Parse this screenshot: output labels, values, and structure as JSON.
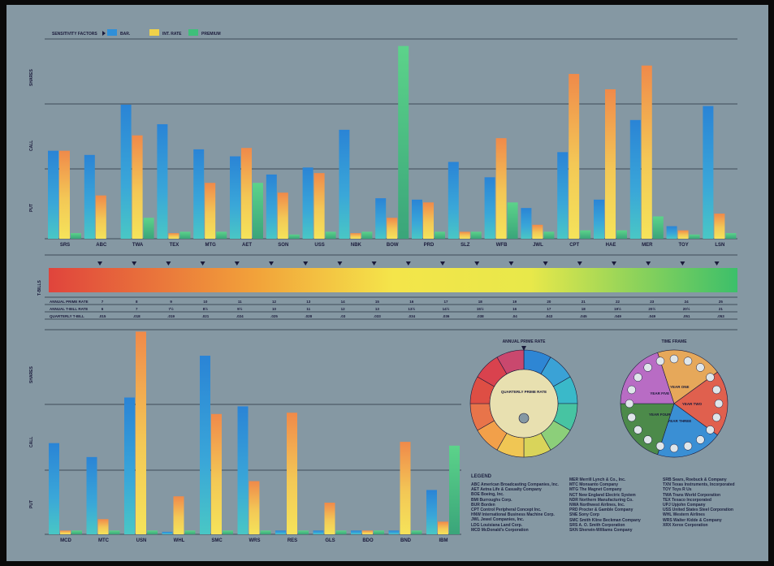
{
  "legend": {
    "title": "SENSITIVITY FACTORS",
    "items": [
      {
        "label": "BAR.",
        "color": "#2f8fd8"
      },
      {
        "label": "INT. RATE",
        "color": "#f0d24a"
      },
      {
        "label": "PREMIUM",
        "color": "#3fbf7a"
      }
    ]
  },
  "colors": {
    "bg": "#8598a3",
    "blue": "#2f8fd8",
    "orange": "#f09a4a",
    "green": "#3fbf7a",
    "text": "#1a1a3a"
  },
  "top_axis_labels": [
    "SHARES",
    "CALL",
    "PUT"
  ],
  "bottom_axis_labels": [
    "SHARES",
    "CALL",
    "PUT"
  ],
  "tbills_label": "T-BILLS",
  "rate_table": {
    "rows": [
      {
        "label": "ANNUAL PRIME RATE",
        "values": [
          "7",
          "8",
          "9",
          "10",
          "11",
          "12",
          "13",
          "14",
          "15",
          "16",
          "17",
          "18",
          "19",
          "20",
          "21",
          "22",
          "23",
          "24",
          "25"
        ]
      },
      {
        "label": "ANNUAL T-BILL RATE",
        "values": [
          "6",
          "7",
          "7½",
          "8½",
          "9½",
          "10",
          "11",
          "12",
          "13",
          "13½",
          "14½",
          "15½",
          "16",
          "17",
          "18",
          "19½",
          "20½",
          "20½",
          "21"
        ]
      },
      {
        "label": "QUARTERLY T-BILL",
        "values": [
          ".015",
          ".018",
          ".019",
          ".021",
          ".024",
          ".025",
          ".028",
          ".03",
          ".033",
          ".034",
          ".036",
          ".038",
          ".04",
          ".043",
          ".045",
          ".049",
          ".049",
          ".051",
          ".053"
        ]
      }
    ]
  },
  "wheel1": {
    "title": "ANNUAL PRIME RATE",
    "center": "QUARTERLY PRIME RATE"
  },
  "wheel2": {
    "title": "TIME FRAME",
    "segments": [
      "YEAR ONE",
      "YEAR TWO",
      "YEAR THREE",
      "YEAR FOUR",
      "YEAR FIVE"
    ]
  },
  "bottom_legend": {
    "title": "LEGEND",
    "col1": [
      "ABC American Broadcasting Companies, Inc.",
      "AET Aetna Life & Casualty Company",
      "BOE Boeing, Inc.",
      "BMI Burroughs Corp.",
      "BUR Borden",
      "CPT Control Peripheral Concept Inc.",
      "HNW International Business Machine Corp.",
      "JWL Jewel Companies, Inc.",
      "LDG Louisiana Land Corp.",
      "MCD McDonald's Corporation"
    ],
    "col2": [
      "MER Merrill Lynch & Co., Inc.",
      "MTC Monsanto Company",
      "MTG The Magnet Company",
      "NCT New England Electric System",
      "NDR Northern Manufacturing Co.",
      "NWA Northwest Airlines, Inc.",
      "PRD Procter & Gamble Company",
      "SNE Sony Corp",
      "SMC Smith Kline Beckman Company",
      "SRS A. O. Smith Corporation",
      "SKN Sherwin-Williams Company"
    ],
    "col3": [
      "SRB Sears, Roebuck & Company",
      "TXN Texas Instruments, Incorporated",
      "TOY Toys R Us",
      "TWA Trans World Corporation",
      "TEX Texaco Incorporated",
      "UPJ Upjohn Company",
      "USS United States Steel Corporation",
      "WHL Western Airlines",
      "WRS Walter Kidde & Company",
      "XRX Xerox Corporation"
    ]
  },
  "chart_data": [
    {
      "type": "bar",
      "categories": [
        "SRS",
        "ABC",
        "TWA",
        "TEX",
        "MTG",
        "AET",
        "SON",
        "USS",
        "NBK",
        "BOW",
        "PRD",
        "SLZ",
        "WFB",
        "JWL",
        "CPT",
        "HAE",
        "MER",
        "TOY",
        "LSN"
      ],
      "series": [
        {
          "name": "BAR.",
          "values": [
            63,
            60,
            96,
            82,
            64,
            59,
            46,
            51,
            78,
            29,
            28,
            55,
            44,
            22,
            62,
            28,
            85,
            9,
            95
          ]
        },
        {
          "name": "INT. RATE",
          "values": [
            63,
            31,
            74,
            4,
            40,
            65,
            33,
            47,
            4,
            15,
            26,
            5,
            72,
            10,
            118,
            107,
            124,
            6,
            18
          ]
        },
        {
          "name": "PREMIUM",
          "values": [
            4,
            0,
            15,
            5,
            5,
            40,
            3,
            5,
            5,
            138,
            5,
            5,
            26,
            5,
            6,
            6,
            16,
            3,
            4
          ]
        }
      ]
    },
    {
      "type": "bar",
      "categories": [
        "MCD",
        "MTC",
        "USN",
        "WHL",
        "SMC",
        "WRS",
        "RES",
        "GLS",
        "BDO",
        "BND",
        "IBM"
      ],
      "series": [
        {
          "name": "BAR.",
          "values": [
            72,
            61,
            108,
            2,
            141,
            101,
            3,
            3,
            3,
            3,
            35
          ]
        },
        {
          "name": "INT. RATE",
          "values": [
            3,
            12,
            160,
            30,
            95,
            42,
            96,
            25,
            3,
            73,
            10
          ]
        },
        {
          "name": "PREMIUM",
          "values": [
            3,
            3,
            3,
            3,
            3,
            3,
            3,
            3,
            3,
            3,
            70
          ]
        }
      ]
    }
  ]
}
